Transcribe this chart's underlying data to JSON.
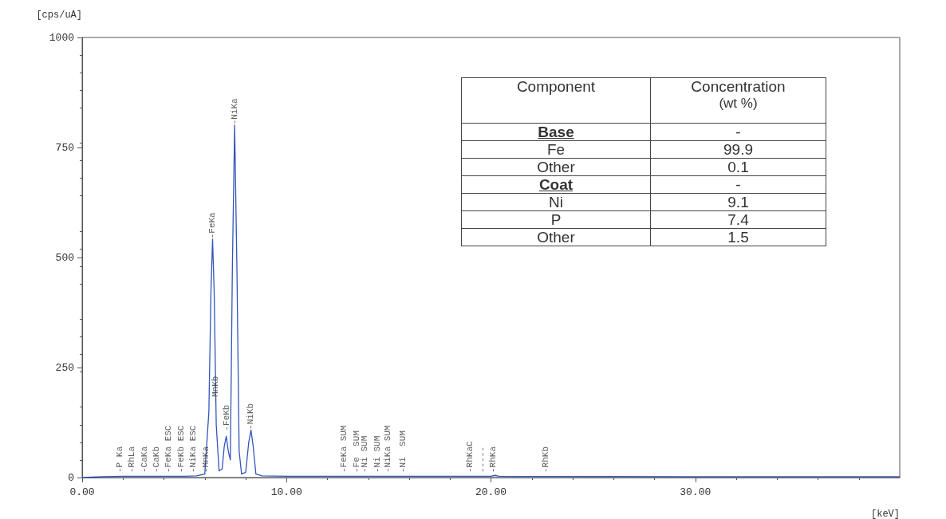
{
  "chart_data": [
    {
      "type": "line",
      "xlabel": "[keV]",
      "ylabel": "[cps/uA]",
      "xlim": [
        0,
        40
      ],
      "ylim": [
        0,
        1000
      ],
      "xticks": [
        {
          "value": 0,
          "label": "0.00"
        },
        {
          "value": 10,
          "label": "10.00"
        },
        {
          "value": 20,
          "label": "20.00"
        },
        {
          "value": 30,
          "label": "30.00"
        }
      ],
      "yticks": [
        0,
        250,
        500,
        750,
        1000
      ],
      "grid": false,
      "marker": "none",
      "line_style": "solid",
      "series": [
        {
          "color": "#3355bb",
          "x": [
            0,
            1,
            2,
            3,
            4,
            5,
            5.6,
            6.0,
            6.2,
            6.3,
            6.38,
            6.46,
            6.56,
            6.7,
            6.85,
            6.95,
            7.05,
            7.15,
            7.25,
            7.35,
            7.46,
            7.57,
            7.68,
            7.8,
            8.0,
            8.15,
            8.26,
            8.37,
            8.5,
            8.8,
            10,
            13,
            14,
            20,
            20.2,
            20.4,
            30,
            40
          ],
          "values": [
            0,
            2,
            3,
            3,
            3,
            3,
            4,
            8,
            150,
            420,
            542,
            420,
            120,
            15,
            20,
            70,
            94,
            60,
            40,
            480,
            801,
            480,
            60,
            8,
            12,
            80,
            108,
            70,
            8,
            4,
            3,
            3,
            3,
            3,
            5,
            3,
            2,
            2
          ]
        }
      ],
      "annotations": [
        {
          "text": "-P Ka",
          "x": 1.85,
          "y": 10
        },
        {
          "text": "-RhLa",
          "x": 2.45,
          "y": 10
        },
        {
          "text": "-CaKa",
          "x": 3.05,
          "y": 10
        },
        {
          "text": "-CaKb",
          "x": 3.65,
          "y": 10
        },
        {
          "text": "-FeKa ESC",
          "x": 4.25,
          "y": 10
        },
        {
          "text": "-FeKb ESC",
          "x": 4.85,
          "y": 10
        },
        {
          "text": "-NiKa ESC",
          "x": 5.45,
          "y": 10
        },
        {
          "text": "-MnKa",
          "x": 6.05,
          "y": 10
        },
        {
          "text": "-FeKa",
          "x": 6.38,
          "y": 542
        },
        {
          "text": "-MnKb",
          "x": 6.55,
          "y": 170
        },
        {
          "text": "-FeKb",
          "x": 7.1,
          "y": 105
        },
        {
          "text": "-NiKa",
          "x": 7.46,
          "y": 801
        },
        {
          "text": "-NiKb",
          "x": 8.26,
          "y": 108
        },
        {
          "text": "-FeKa SUM",
          "x": 12.8,
          "y": 10
        },
        {
          "text": "-Fe  SUM",
          "x": 13.45,
          "y": 10
        },
        {
          "text": "-Ni SUM",
          "x": 13.85,
          "y": 10
        },
        {
          "text": "-Ni SUM",
          "x": 14.45,
          "y": 10
        },
        {
          "text": "-NiKa SUM",
          "x": 14.95,
          "y": 10
        },
        {
          "text": "-Ni  SUM",
          "x": 15.7,
          "y": 10
        },
        {
          "text": "-RhKaC",
          "x": 19.0,
          "y": 10
        },
        {
          "text": "-----",
          "x": 19.6,
          "y": 10
        },
        {
          "text": "-RhKa",
          "x": 20.1,
          "y": 10
        },
        {
          "text": "-RhKb",
          "x": 22.7,
          "y": 10
        }
      ]
    },
    {
      "type": "other",
      "annotations": [
        "Component",
        "Concentration\n(wt %)"
      ],
      "categories": [
        "Base",
        "Fe",
        "Other",
        "Coat",
        "Ni",
        "P",
        "Other"
      ],
      "value_labels": [
        "-",
        "99.9",
        "0.1",
        "-",
        "9.1",
        "7.4",
        "1.5"
      ]
    }
  ]
}
